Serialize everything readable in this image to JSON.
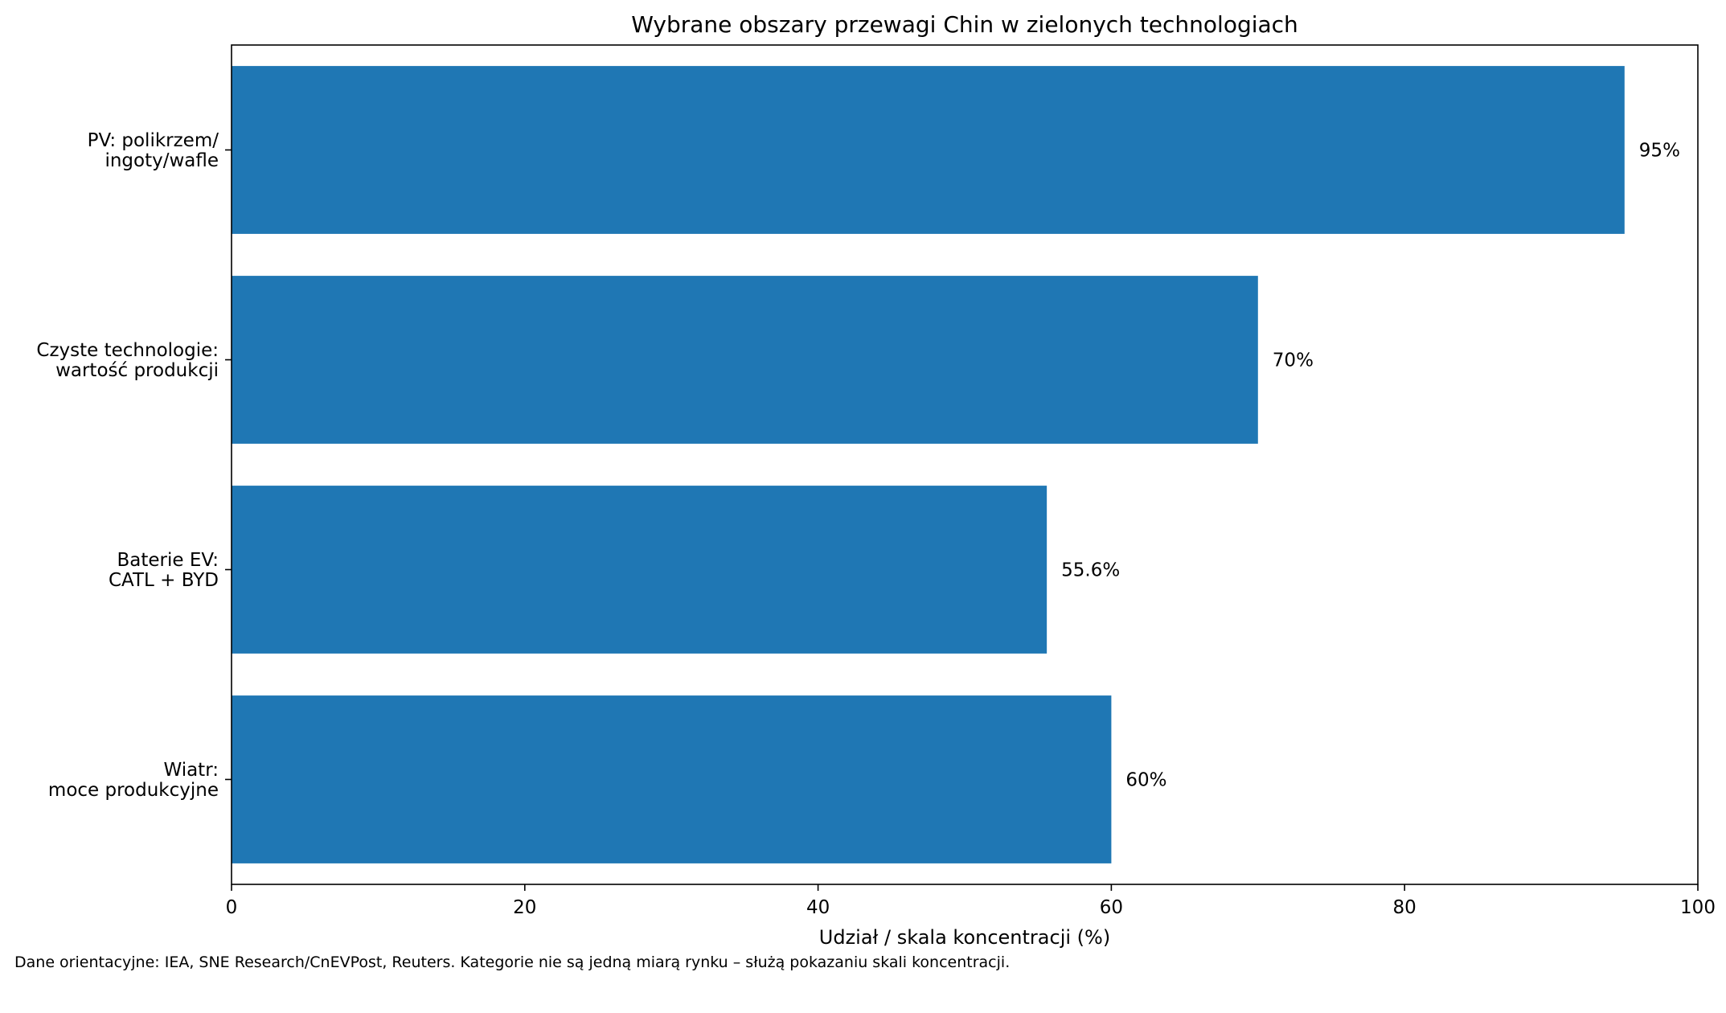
{
  "chart_data": {
    "type": "bar",
    "orientation": "horizontal",
    "title": "Wybrane obszary przewagi Chin w zielonych technologiach",
    "xlabel": "Udział / skala koncentracji (%)",
    "ylabel": "",
    "xlim": [
      0,
      100
    ],
    "xticks": [
      0,
      20,
      40,
      60,
      80,
      100
    ],
    "grid": false,
    "categories": [
      [
        "PV: polikrzem/",
        "ingoty/wafle"
      ],
      [
        "Czyste technologie:",
        "wartość produkcji"
      ],
      [
        "Baterie EV:",
        "CATL + BYD"
      ],
      [
        "Wiatr:",
        "moce produkcyjne"
      ]
    ],
    "values": [
      95,
      70,
      55.6,
      60
    ],
    "data_labels": [
      "95%",
      "70%",
      "55.6%",
      "60%"
    ],
    "bar_color": "#1f77b4"
  },
  "footnote": "Dane orientacyjne: IEA, SNE Research/CnEVPost, Reuters. Kategorie nie są jedną miarą rynku – służą pokazaniu skali koncentracji."
}
